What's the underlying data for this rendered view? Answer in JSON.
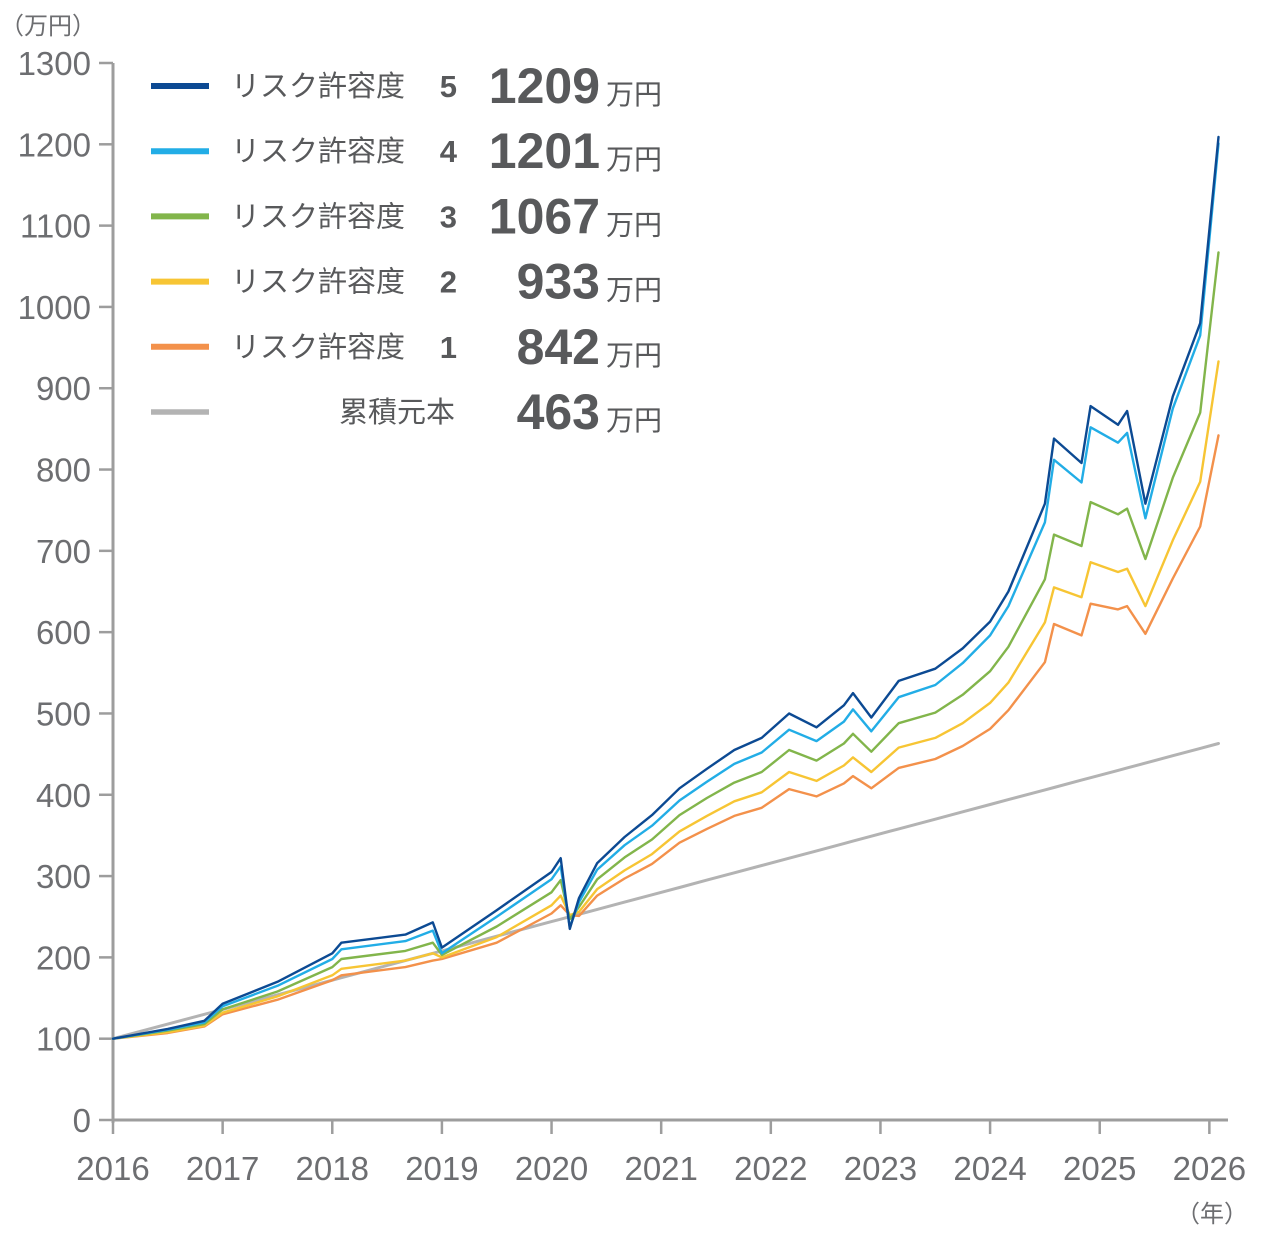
{
  "chart_data": {
    "type": "line",
    "y_unit_label": "（万円）",
    "x_unit_label": "（年）",
    "ylim": [
      0,
      1300
    ],
    "y_ticks": [
      0,
      100,
      200,
      300,
      400,
      500,
      600,
      700,
      800,
      900,
      1000,
      1100,
      1200,
      1300
    ],
    "y_tick_labels": [
      "0",
      "100",
      "200",
      "300",
      "400",
      "500",
      "600",
      "700",
      "800",
      "900",
      "1000",
      "1100",
      "1200",
      "1300"
    ],
    "xlim": [
      "2016-01",
      "2026-02"
    ],
    "x_ticks": [
      "2016",
      "2017",
      "2018",
      "2019",
      "2020",
      "2021",
      "2022",
      "2023",
      "2024",
      "2025",
      "2026"
    ],
    "grid": false,
    "legend_position": "top-left",
    "value_unit": "万円",
    "colors": {
      "risk5": "#0c4a93",
      "risk4": "#22ade6",
      "risk3": "#82b54b",
      "risk2": "#f7c534",
      "risk1": "#f3914b",
      "principal": "#b3b3b3",
      "axis": "#9d9d9d"
    },
    "x": [
      "2016-01",
      "2016-07",
      "2016-11",
      "2017-01",
      "2017-07",
      "2018-01",
      "2018-02",
      "2018-09",
      "2018-12",
      "2019-01",
      "2019-07",
      "2020-01",
      "2020-02",
      "2020-03",
      "2020-04",
      "2020-06",
      "2020-09",
      "2020-12",
      "2021-03",
      "2021-06",
      "2021-09",
      "2021-12",
      "2022-03",
      "2022-06",
      "2022-09",
      "2022-10",
      "2022-12",
      "2023-03",
      "2023-07",
      "2023-10",
      "2024-01",
      "2024-03",
      "2024-07",
      "2024-08",
      "2024-11",
      "2024-12",
      "2025-03",
      "2025-04",
      "2025-06",
      "2025-09",
      "2025-12",
      "2026-02"
    ],
    "series": [
      {
        "name": "リスク許容度 5",
        "key": "risk5",
        "final_value": 1209,
        "final_label": "1209",
        "values": [
          100,
          112,
          122,
          143,
          170,
          205,
          218,
          228,
          243,
          212,
          258,
          305,
          322,
          235,
          273,
          316,
          348,
          375,
          408,
          432,
          455,
          470,
          500,
          483,
          510,
          525,
          495,
          540,
          555,
          580,
          613,
          650,
          758,
          838,
          808,
          878,
          855,
          872,
          758,
          890,
          980,
          1209
        ]
      },
      {
        "name": "リスク許容度 4",
        "key": "risk4",
        "final_value": 1201,
        "final_label": "1201",
        "values": [
          100,
          111,
          120,
          140,
          165,
          198,
          210,
          220,
          233,
          205,
          250,
          296,
          312,
          237,
          268,
          308,
          338,
          362,
          393,
          416,
          438,
          452,
          480,
          466,
          490,
          505,
          478,
          520,
          535,
          562,
          596,
          632,
          735,
          812,
          784,
          852,
          833,
          845,
          740,
          875,
          965,
          1201
        ]
      },
      {
        "name": "リスク許容度 3",
        "key": "risk3",
        "final_value": 1067,
        "final_label": "1067",
        "values": [
          100,
          110,
          118,
          136,
          158,
          188,
          198,
          208,
          218,
          203,
          238,
          280,
          295,
          247,
          262,
          296,
          323,
          345,
          375,
          396,
          415,
          428,
          455,
          442,
          463,
          475,
          453,
          488,
          501,
          523,
          552,
          582,
          665,
          720,
          706,
          760,
          745,
          752,
          690,
          790,
          870,
          1067
        ]
      },
      {
        "name": "リスク許容度 2",
        "key": "risk2",
        "final_value": 933,
        "final_label": "933",
        "values": [
          100,
          108,
          116,
          132,
          152,
          178,
          186,
          196,
          205,
          200,
          225,
          264,
          276,
          252,
          256,
          284,
          307,
          327,
          355,
          374,
          392,
          403,
          428,
          417,
          436,
          446,
          428,
          458,
          470,
          488,
          513,
          538,
          612,
          655,
          643,
          686,
          674,
          678,
          632,
          713,
          785,
          933
        ]
      },
      {
        "name": "リスク許容度 1",
        "key": "risk1",
        "final_value": 842,
        "final_label": "842",
        "values": [
          100,
          107,
          115,
          130,
          148,
          172,
          178,
          188,
          196,
          198,
          218,
          254,
          264,
          252,
          251,
          276,
          297,
          315,
          341,
          358,
          374,
          384,
          407,
          398,
          414,
          423,
          408,
          433,
          444,
          460,
          481,
          504,
          563,
          610,
          596,
          635,
          628,
          632,
          598,
          666,
          730,
          842
        ]
      },
      {
        "name": "累積元本",
        "key": "principal",
        "final_value": 463,
        "final_label": "463",
        "values": [
          100,
          118,
          130,
          136,
          154,
          172,
          175,
          196,
          205,
          208,
          226,
          244,
          247,
          250,
          253,
          259,
          268,
          277,
          286,
          295,
          304,
          313,
          322,
          331,
          340,
          343,
          349,
          358,
          370,
          379,
          388,
          394,
          406,
          409,
          418,
          421,
          430,
          433,
          439,
          448,
          457,
          463
        ]
      }
    ]
  }
}
